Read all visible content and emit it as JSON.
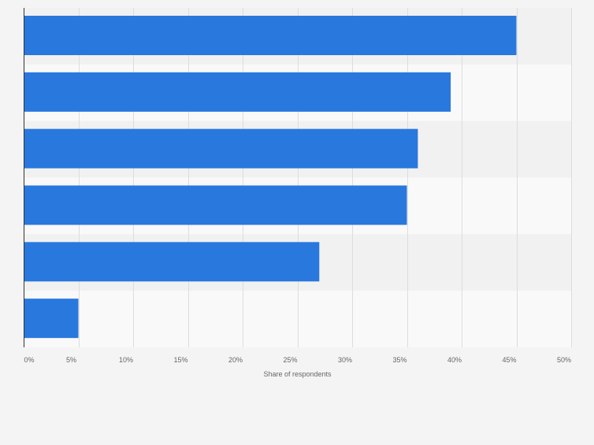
{
  "chart_data": {
    "type": "bar",
    "orientation": "horizontal",
    "categories": [
      "",
      "",
      "",
      "",
      "",
      ""
    ],
    "values": [
      45,
      39,
      36,
      35,
      27,
      5
    ],
    "xlabel": "Share of respondents",
    "ylabel": "",
    "xlim": [
      0,
      50
    ],
    "x_ticks": [
      0,
      5,
      10,
      15,
      20,
      25,
      30,
      35,
      40,
      45,
      50
    ],
    "x_tick_labels": [
      "0%",
      "5%",
      "10%",
      "15%",
      "20%",
      "25%",
      "30%",
      "35%",
      "40%",
      "45%",
      "50%"
    ],
    "grid": "vertical",
    "legend": "none",
    "colors": {
      "bar": "#2878dd",
      "band_dark": "#f1f1f1",
      "band_light": "#f9f9f9",
      "grid": "#dddddd",
      "axis": "#333333",
      "tick_text": "#666666",
      "background": "#f4f4f4"
    }
  }
}
